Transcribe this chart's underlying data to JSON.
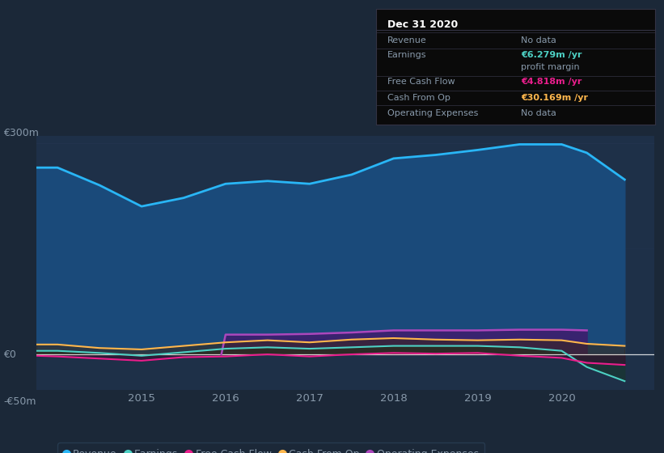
{
  "bg_color": "#1b2838",
  "plot_bg_color": "#1e3048",
  "years": [
    2013.75,
    2014.0,
    2014.5,
    2015.0,
    2015.5,
    2016.0,
    2016.5,
    2017.0,
    2017.5,
    2018.0,
    2018.5,
    2019.0,
    2019.5,
    2020.0,
    2020.3,
    2020.75
  ],
  "revenue": [
    265,
    265,
    240,
    210,
    222,
    242,
    246,
    242,
    255,
    278,
    283,
    290,
    298,
    298,
    286,
    248
  ],
  "earnings": [
    5,
    5,
    2,
    -2,
    3,
    8,
    10,
    8,
    10,
    12,
    12,
    12,
    10,
    5,
    -18,
    -38
  ],
  "free_cash": [
    -2,
    -3,
    -6,
    -9,
    -4,
    -3,
    0,
    -3,
    0,
    2,
    1,
    2,
    -2,
    -5,
    -12,
    -15
  ],
  "cash_from_op": [
    14,
    14,
    9,
    7,
    12,
    17,
    20,
    17,
    21,
    23,
    21,
    20,
    21,
    20,
    15,
    12
  ],
  "op_expenses_x": [
    2015.95,
    2016.0,
    2016.5,
    2017.0,
    2017.5,
    2018.0,
    2018.5,
    2019.0,
    2019.5,
    2020.0,
    2020.3
  ],
  "op_expenses_y": [
    0,
    28,
    28,
    29,
    31,
    34,
    34,
    34,
    35,
    35,
    34
  ],
  "revenue_color": "#29b6f6",
  "earnings_color": "#4dd0c4",
  "free_cash_color": "#e91e8c",
  "cash_from_op_color": "#ffb74d",
  "op_expenses_color": "#ab47bc",
  "revenue_fill": "#1a4a7a",
  "earnings_fill": "#2d4a4a",
  "op_expenses_fill": "#3d1f6e",
  "ylim": [
    -50,
    310
  ],
  "xticks": [
    2015,
    2016,
    2017,
    2018,
    2019,
    2020
  ],
  "grid_color": "#253550",
  "text_color": "#8899aa",
  "white_color": "#ffffff",
  "legend_labels": [
    "Revenue",
    "Earnings",
    "Free Cash Flow",
    "Cash From Op",
    "Operating Expenses"
  ],
  "legend_colors": [
    "#29b6f6",
    "#4dd0c4",
    "#e91e8c",
    "#ffb74d",
    "#ab47bc"
  ],
  "tooltip_title": "Dec 31 2020",
  "tooltip_title_color": "#ffffff",
  "tooltip_bg": "#0a0a0a",
  "tooltip_border": "#333344",
  "tooltip_text_color": "#8899aa",
  "tooltip_rows": [
    {
      "label": "Revenue",
      "value": "No data",
      "value_color": "#8899aa"
    },
    {
      "label": "Earnings",
      "value": "€6.279m /yr",
      "value_color": "#4dd0c4"
    },
    {
      "label": "",
      "value": "profit margin",
      "value_color": "#8899aa"
    },
    {
      "label": "Free Cash Flow",
      "value": "€4.818m /yr",
      "value_color": "#e91e8c"
    },
    {
      "label": "Cash From Op",
      "value": "€30.169m /yr",
      "value_color": "#ffb74d"
    },
    {
      "label": "Operating Expenses",
      "value": "No data",
      "value_color": "#8899aa"
    }
  ]
}
